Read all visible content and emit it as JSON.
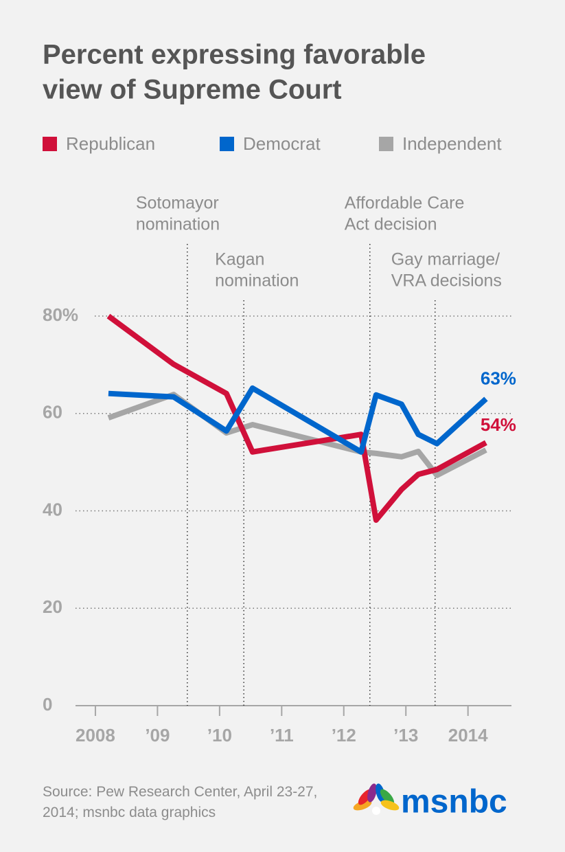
{
  "chart_data": {
    "type": "line",
    "title": [
      "Percent expressing favorable",
      "view of Supreme Court"
    ],
    "x": [
      2008.21,
      2009.26,
      2010.11,
      2010.53,
      2012.28,
      2012.52,
      2012.93,
      2013.2,
      2013.5,
      2014.29
    ],
    "series": [
      {
        "name": "Republican",
        "color": "#d0103a",
        "values": [
          80,
          70.1,
          64.1,
          52.1,
          55.7,
          38.1,
          44.4,
          47.5,
          48.5,
          54
        ],
        "value_labels": [
          null,
          null,
          null,
          null,
          null,
          null,
          null,
          null,
          null,
          "54%"
        ]
      },
      {
        "name": "Democrat",
        "color": "#0066cc",
        "values": [
          64.1,
          63.4,
          56.4,
          65.2,
          52.1,
          63.8,
          61.9,
          55.7,
          53.8,
          63
        ],
        "value_labels": [
          null,
          null,
          null,
          null,
          null,
          null,
          null,
          null,
          null,
          "63%"
        ]
      },
      {
        "name": "Independent",
        "color": "#a6a6a6",
        "values": [
          59.1,
          63.9,
          56.0,
          57.7,
          52.1,
          51.8,
          51.1,
          52.2,
          47.3,
          52.5
        ]
      }
    ],
    "xlim": [
      2007.68,
      2014.7
    ],
    "xticks": [
      {
        "value": 2008,
        "label": "2008"
      },
      {
        "value": 2009,
        "label": "’09"
      },
      {
        "value": 2010,
        "label": "’10"
      },
      {
        "value": 2011,
        "label": "’11"
      },
      {
        "value": 2012,
        "label": "’12"
      },
      {
        "value": 2013,
        "label": "’13"
      },
      {
        "value": 2014,
        "label": "2014"
      }
    ],
    "ylim": [
      0,
      80
    ],
    "yticks": [
      0,
      20,
      40,
      60,
      {
        "value": 80,
        "label": "80%"
      }
    ],
    "grid": true,
    "legend": "top",
    "events": [
      {
        "x": 2009.48,
        "lines": [
          "Sotomayor",
          "nomination"
        ]
      },
      {
        "x": 2010.39,
        "lines": [
          "Kagan",
          "nomination"
        ]
      },
      {
        "x": 2012.42,
        "lines": [
          "Affordable Care",
          "Act decision"
        ]
      },
      {
        "x": 2013.47,
        "lines": [
          "Gay marriage/",
          "VRA decisions"
        ]
      }
    ],
    "source": "Source: Pew Research Center, April 23-27, 2014; msnbc data graphics",
    "logo": "msnbc"
  }
}
